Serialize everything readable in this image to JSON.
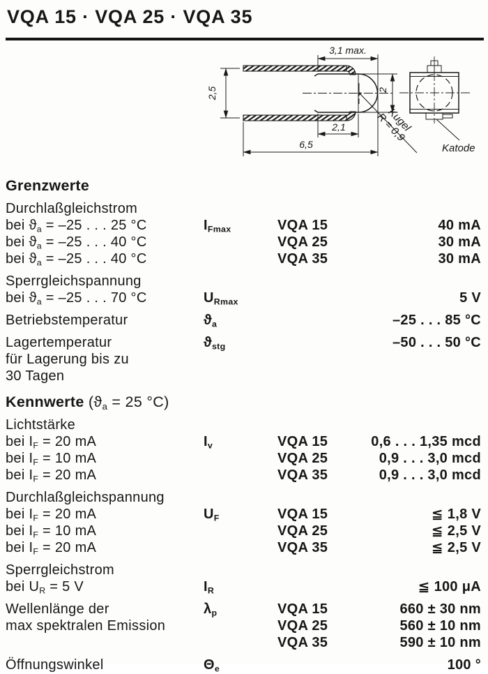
{
  "title": "VQA 15 · VQA 25 · VQA 35",
  "drawing": {
    "dim_width": "3,1 max.",
    "dim_height": "2,5",
    "dim_dome": "2",
    "dim_body": "2,1",
    "dim_total": "6,5",
    "sphere_line1": "Kugel",
    "sphere_line2": "R = 0,9",
    "cathode": "Katode"
  },
  "sections": [
    {
      "heading": "Grenzwerte",
      "suffix": "",
      "blocks": [
        {
          "rows": [
            {
              "d": "Durchlaßgleichstrom",
              "s": "",
              "t": "",
              "v": ""
            },
            {
              "d": "bei ϑ_{a} = –25 . . . 25 °C",
              "s": "I_{Fmax}",
              "t": "VQA 15",
              "v": "40 mA"
            },
            {
              "d": "bei ϑ_{a} = –25 . . . 40 °C",
              "s": "",
              "t": "VQA 25",
              "v": "30 mA"
            },
            {
              "d": "bei ϑ_{a} = –25 . . . 40 °C",
              "s": "",
              "t": "VQA 35",
              "v": "30 mA"
            }
          ]
        },
        {
          "rows": [
            {
              "d": "Sperrgleichspannung",
              "s": "",
              "t": "",
              "v": ""
            },
            {
              "d": "bei ϑ_{a} = –25 . . . 70 °C",
              "s": "U_{Rmax}",
              "t": "",
              "v": "5 V"
            }
          ]
        },
        {
          "rows": [
            {
              "d": "Betriebstemperatur",
              "s": "ϑ_{a}",
              "t": "",
              "v": "–25 . . . 85 °C"
            }
          ]
        },
        {
          "rows": [
            {
              "d": "Lagertemperatur",
              "s": "ϑ_{stg}",
              "t": "",
              "v": "–50 . . . 50 °C"
            },
            {
              "d": "für Lagerung bis zu",
              "s": "",
              "t": "",
              "v": ""
            },
            {
              "d": "30 Tagen",
              "s": "",
              "t": "",
              "v": ""
            }
          ]
        }
      ]
    },
    {
      "heading": "Kennwerte",
      "suffix": "(ϑ_{a} = 25 °C)",
      "blocks": [
        {
          "rows": [
            {
              "d": "Lichtstärke",
              "s": "",
              "t": "",
              "v": ""
            },
            {
              "d": "bei I_{F} = 20 mA",
              "s": "I_{v}",
              "t": "VQA 15",
              "v": "0,6 . . . 1,35 mcd"
            },
            {
              "d": "bei I_{F} = 10 mA",
              "s": "",
              "t": "VQA 25",
              "v": "0,9 . . . 3,0 mcd"
            },
            {
              "d": "bei I_{F} = 20 mA",
              "s": "",
              "t": "VQA 35",
              "v": "0,9 . . . 3,0 mcd"
            }
          ]
        },
        {
          "rows": [
            {
              "d": "Durchlaßgleichspannung",
              "s": "",
              "t": "",
              "v": ""
            },
            {
              "d": "bei I_{F} = 20 mA",
              "s": "U_{F}",
              "t": "VQA 15",
              "v": "≦ 1,8 V"
            },
            {
              "d": "bei I_{F} = 10 mA",
              "s": "",
              "t": "VQA 25",
              "v": "≦ 2,5 V"
            },
            {
              "d": "bei I_{F} = 20 mA",
              "s": "",
              "t": "VQA 35",
              "v": "≦ 2,5 V"
            }
          ]
        },
        {
          "rows": [
            {
              "d": "Sperrgleichstrom",
              "s": "",
              "t": "",
              "v": ""
            },
            {
              "d": "bei U_{R} = 5 V",
              "s": "I_{R}",
              "t": "",
              "v": "≦ 100 μA"
            }
          ]
        },
        {
          "rows": [
            {
              "d": "Wellenlänge der",
              "s": "λ_{p}",
              "t": "VQA 15",
              "v": "660 ± 30 nm"
            },
            {
              "d": "max spektralen Emission",
              "s": "",
              "t": "VQA 25",
              "v": "560 ± 10 nm"
            },
            {
              "d": "",
              "s": "",
              "t": "VQA 35",
              "v": "590 ± 10 nm"
            }
          ]
        },
        {
          "rows": [
            {
              "d": "Öffnungswinkel",
              "s": "Θ_{e}",
              "t": "",
              "v": "100 °"
            }
          ]
        }
      ]
    }
  ]
}
